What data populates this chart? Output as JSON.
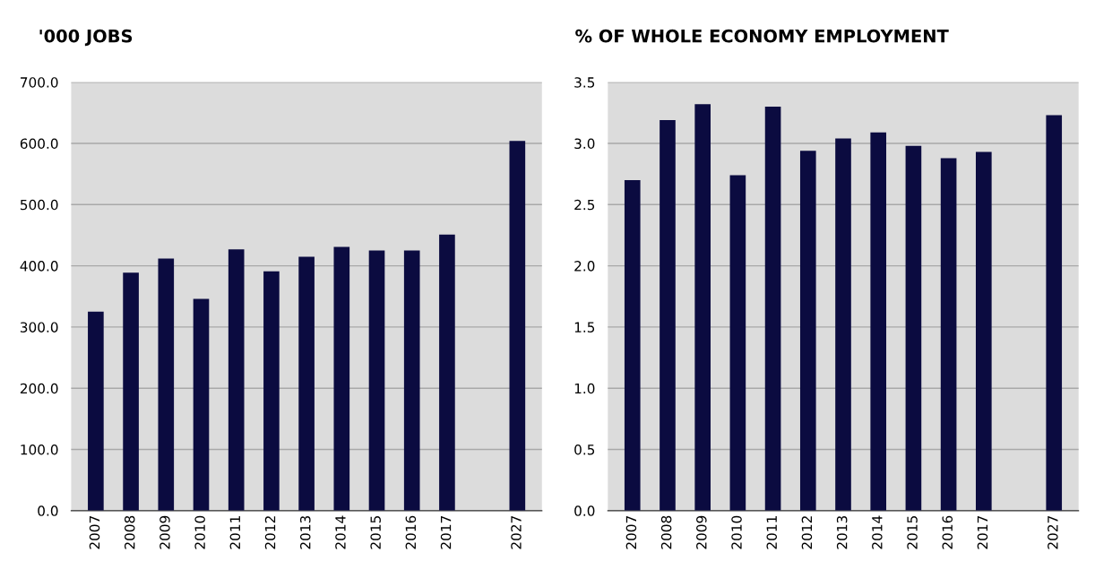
{
  "chart_data": [
    {
      "type": "bar",
      "title": "'000 JOBS",
      "categories": [
        "2007",
        "2008",
        "2009",
        "2010",
        "2011",
        "2012",
        "2013",
        "2014",
        "2015",
        "2016",
        "2017",
        null,
        "2027"
      ],
      "values": [
        325,
        389,
        412,
        346,
        427,
        391,
        415,
        431,
        425,
        425,
        451,
        null,
        604
      ],
      "color": "#0b0b40",
      "ylim": [
        0,
        700
      ],
      "yticks": [
        {
          "value": 0,
          "label": "0.0"
        },
        {
          "value": 100,
          "label": "100.0"
        },
        {
          "value": 200,
          "label": "200.0"
        },
        {
          "value": 300,
          "label": "300.0"
        },
        {
          "value": 400,
          "label": "400.0"
        },
        {
          "value": 500,
          "label": "500.0"
        },
        {
          "value": 600,
          "label": "600.0"
        },
        {
          "value": 700,
          "label": "700.0"
        }
      ],
      "grid": "y",
      "legend": false
    },
    {
      "type": "bar",
      "title": "% OF WHOLE ECONOMY EMPLOYMENT",
      "categories": [
        "2007",
        "2008",
        "2009",
        "2010",
        "2011",
        "2012",
        "2013",
        "2014",
        "2015",
        "2016",
        "2017",
        null,
        "2027"
      ],
      "values": [
        2.7,
        3.19,
        3.32,
        2.74,
        3.3,
        2.94,
        3.04,
        3.09,
        2.98,
        2.88,
        2.93,
        null,
        3.23
      ],
      "color": "#0b0b40",
      "ylim": [
        0,
        3.5
      ],
      "yticks": [
        {
          "value": 0,
          "label": "0.0"
        },
        {
          "value": 0.5,
          "label": "0.5"
        },
        {
          "value": 1,
          "label": "1.0"
        },
        {
          "value": 1.5,
          "label": "1.5"
        },
        {
          "value": 2,
          "label": "2.0"
        },
        {
          "value": 2.5,
          "label": "2.5"
        },
        {
          "value": 3,
          "label": "3.0"
        },
        {
          "value": 3.5,
          "label": "3.5"
        }
      ],
      "grid": "y",
      "legend": false
    }
  ]
}
